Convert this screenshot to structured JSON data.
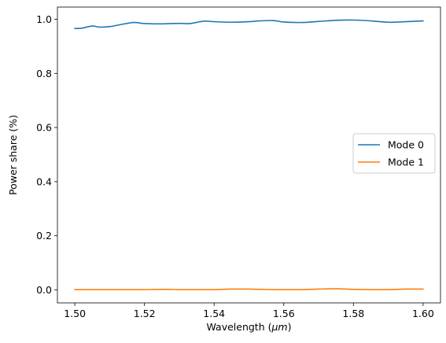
{
  "chart_data": {
    "type": "line",
    "xlabel": "Wavelength (",
    "xlabel_unit": "μm",
    "xlabel_close": ")",
    "ylabel": "Power share (%)",
    "xlim": [
      1.495,
      1.605
    ],
    "ylim": [
      -0.048,
      1.045
    ],
    "xticks": [
      1.5,
      1.52,
      1.54,
      1.56,
      1.58,
      1.6
    ],
    "xtick_labels": [
      "1.50",
      "1.52",
      "1.54",
      "1.56",
      "1.58",
      "1.60"
    ],
    "yticks": [
      0.0,
      0.2,
      0.4,
      0.6,
      0.8,
      1.0
    ],
    "ytick_labels": [
      "0.0",
      "0.2",
      "0.4",
      "0.6",
      "0.8",
      "1.0"
    ],
    "grid": false,
    "legend_position": "center-right",
    "x": [
      1.5,
      1.502,
      1.505,
      1.507,
      1.51,
      1.513,
      1.517,
      1.52,
      1.525,
      1.53,
      1.533,
      1.537,
      1.54,
      1.545,
      1.55,
      1.553,
      1.557,
      1.56,
      1.565,
      1.57,
      1.575,
      1.58,
      1.585,
      1.59,
      1.595,
      1.6
    ],
    "series": [
      {
        "name": "Mode 0",
        "color": "#1f77b4",
        "values": [
          0.966,
          0.967,
          0.975,
          0.971,
          0.973,
          0.98,
          0.988,
          0.984,
          0.983,
          0.985,
          0.984,
          0.993,
          0.991,
          0.989,
          0.991,
          0.994,
          0.995,
          0.99,
          0.988,
          0.992,
          0.996,
          0.997,
          0.994,
          0.989,
          0.991,
          0.994
        ]
      },
      {
        "name": "Mode 1",
        "color": "#ff7f0e",
        "values": [
          0.001,
          0.001,
          0.001,
          0.001,
          0.001,
          0.001,
          0.001,
          0.001,
          0.002,
          0.001,
          0.001,
          0.001,
          0.001,
          0.003,
          0.003,
          0.002,
          0.001,
          0.001,
          0.001,
          0.003,
          0.004,
          0.002,
          0.001,
          0.001,
          0.003,
          0.003
        ]
      }
    ]
  }
}
